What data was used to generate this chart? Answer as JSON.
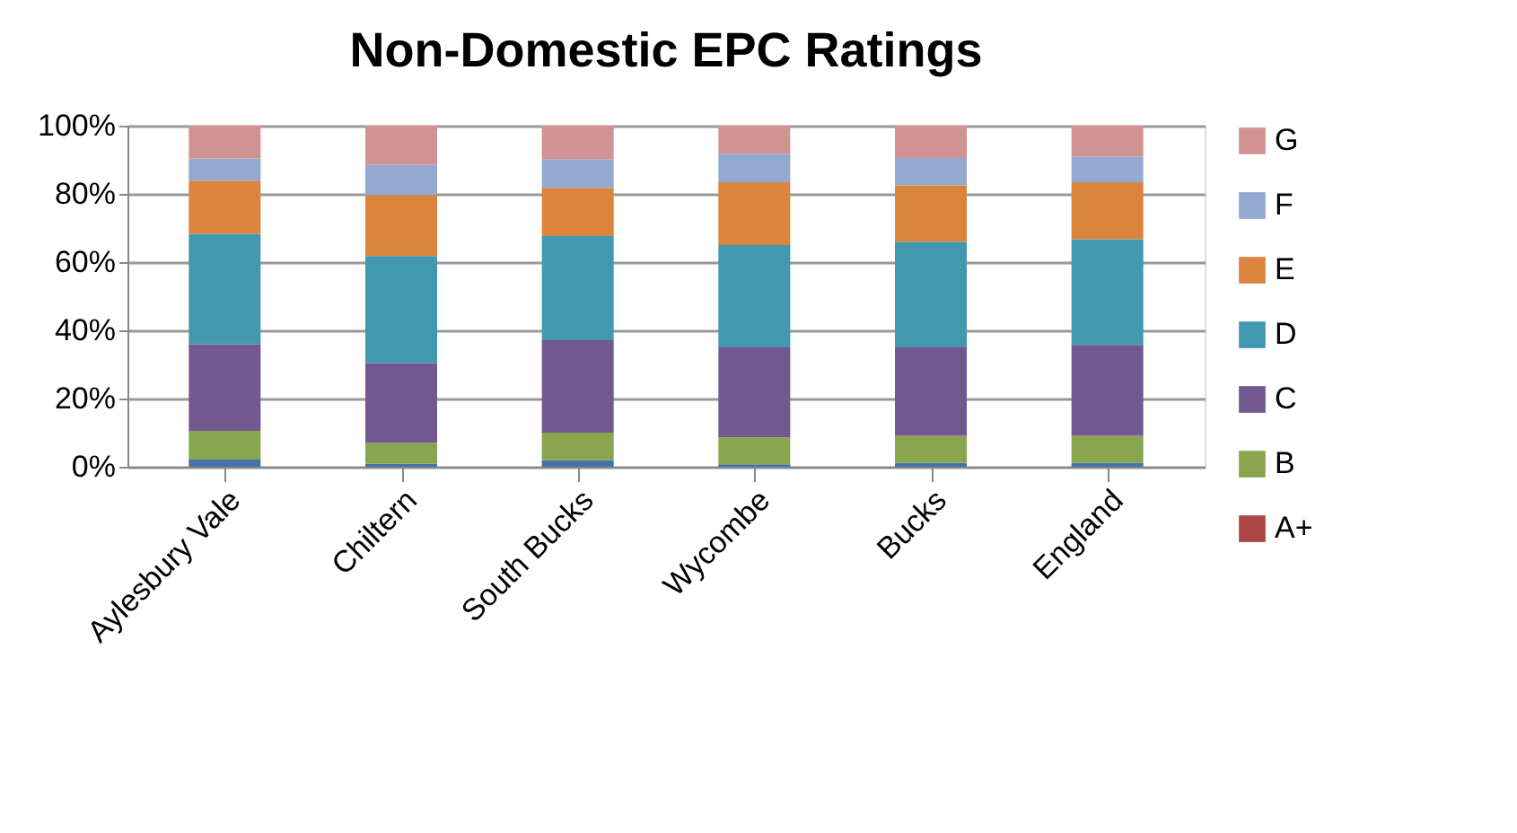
{
  "chart_data": {
    "type": "bar",
    "title": "Non-Domestic EPC Ratings",
    "stacked": true,
    "categories": [
      "Aylesbury Vale",
      "Chiltern",
      "South Bucks",
      "Wycombe",
      "Bucks",
      "England"
    ],
    "series": [
      {
        "name": "A+",
        "color": "#aa4643",
        "values": [
          0,
          0,
          0,
          0,
          0,
          0
        ]
      },
      {
        "color": "#4572a7",
        "values": [
          2.1,
          0.9,
          1.9,
          0.7,
          1.1,
          1.1
        ]
      },
      {
        "name": "B",
        "color": "#89a54e",
        "values": [
          8.4,
          6.1,
          8.1,
          7.9,
          8.0,
          8.0
        ]
      },
      {
        "name": "C",
        "color": "#71588f",
        "values": [
          25.4,
          23.3,
          27.1,
          26.4,
          25.9,
          26.6
        ]
      },
      {
        "name": "D",
        "color": "#4198af",
        "values": [
          32.4,
          31.5,
          30.5,
          30.0,
          31.0,
          31.0
        ]
      },
      {
        "name": "E",
        "color": "#db843d",
        "values": [
          15.6,
          17.9,
          14.2,
          18.4,
          16.5,
          16.7
        ]
      },
      {
        "name": "F",
        "color": "#93a9cf",
        "values": [
          6.5,
          8.9,
          8.4,
          8.4,
          8.0,
          7.5
        ]
      },
      {
        "name": "G",
        "color": "#d19392",
        "values": [
          9.6,
          11.4,
          9.8,
          8.2,
          9.5,
          9.1
        ]
      }
    ],
    "ylim": [
      0,
      100
    ],
    "yticks": [
      {
        "value": 0,
        "label": "0%"
      },
      {
        "value": 20,
        "label": "20%"
      },
      {
        "value": 40,
        "label": "40%"
      },
      {
        "value": 60,
        "label": "60%"
      },
      {
        "value": 80,
        "label": "80%"
      },
      {
        "value": 100,
        "label": "100%"
      }
    ],
    "grid": "y",
    "legend": "right"
  }
}
